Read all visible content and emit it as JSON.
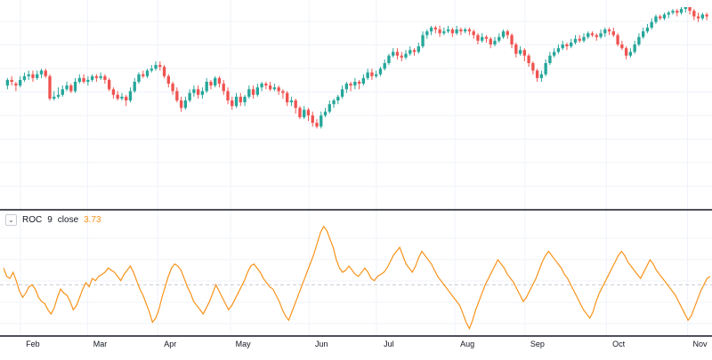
{
  "indicator": {
    "name": "ROC",
    "length": "9",
    "source": "close",
    "value": "3.73",
    "toggle_icon": "chevron-down-icon"
  },
  "colors": {
    "up": "#26a69a",
    "down": "#ef5350",
    "roc_line": "#f7931a",
    "grid": "#f0f3fa",
    "separator": "#131722",
    "zero_line": "#c9ccd4"
  },
  "chart_data": [
    {
      "type": "candlestick",
      "title": "",
      "x_tick_labels": [
        "Feb",
        "Mar",
        "Apr",
        "May",
        "Jun",
        "Jul",
        "Aug",
        "Sep",
        "Oct",
        "Nov"
      ],
      "x_range": [
        0,
        254
      ],
      "x_ticks": [
        6,
        30,
        55,
        81,
        109,
        133,
        161,
        186,
        215,
        244
      ],
      "ylim": [
        0,
        100
      ],
      "grid": true,
      "candles": [
        [
          0,
          58,
          61,
          62,
          56
        ],
        [
          1,
          61,
          60,
          63,
          58
        ],
        [
          2,
          59,
          58,
          60,
          55
        ],
        [
          3,
          58,
          61,
          63,
          57
        ],
        [
          4,
          61,
          63,
          65,
          60
        ],
        [
          5,
          63,
          64,
          66,
          61
        ],
        [
          6,
          64,
          62,
          66,
          60
        ],
        [
          7,
          62,
          64,
          66,
          61
        ],
        [
          8,
          64,
          66,
          67,
          62
        ],
        [
          9,
          66,
          63,
          67,
          62
        ],
        [
          10,
          63,
          51,
          64,
          50
        ],
        [
          11,
          51,
          52,
          55,
          50
        ],
        [
          12,
          52,
          53,
          57,
          51
        ],
        [
          13,
          53,
          56,
          58,
          52
        ],
        [
          14,
          56,
          58,
          60,
          55
        ],
        [
          15,
          58,
          55,
          59,
          54
        ],
        [
          16,
          55,
          60,
          62,
          54
        ],
        [
          17,
          60,
          62,
          64,
          59
        ],
        [
          18,
          62,
          60,
          64,
          59
        ],
        [
          19,
          60,
          61,
          63,
          58
        ],
        [
          20,
          61,
          63,
          64,
          60
        ],
        [
          21,
          63,
          62,
          64,
          60
        ],
        [
          22,
          62,
          63,
          65,
          61
        ],
        [
          23,
          63,
          61,
          64,
          59
        ],
        [
          24,
          61,
          56,
          62,
          55
        ],
        [
          25,
          56,
          53,
          57,
          51
        ],
        [
          26,
          53,
          51,
          55,
          50
        ],
        [
          27,
          51,
          52,
          54,
          50
        ],
        [
          28,
          52,
          50,
          53,
          47
        ],
        [
          29,
          50,
          55,
          57,
          49
        ],
        [
          30,
          55,
          60,
          62,
          54
        ],
        [
          31,
          60,
          64,
          65,
          59
        ],
        [
          32,
          64,
          63,
          66,
          62
        ],
        [
          33,
          63,
          66,
          67,
          62
        ],
        [
          34,
          66,
          67,
          69,
          65
        ],
        [
          35,
          67,
          69,
          71,
          66
        ],
        [
          36,
          69,
          68,
          71,
          66
        ],
        [
          37,
          68,
          63,
          69,
          62
        ],
        [
          38,
          63,
          59,
          64,
          57
        ],
        [
          39,
          59,
          55,
          60,
          53
        ],
        [
          40,
          55,
          50,
          57,
          49
        ],
        [
          41,
          50,
          46,
          52,
          44
        ],
        [
          42,
          46,
          50,
          52,
          45
        ],
        [
          43,
          50,
          54,
          56,
          49
        ],
        [
          44,
          54,
          56,
          58,
          52
        ],
        [
          45,
          56,
          53,
          58,
          51
        ],
        [
          46,
          53,
          55,
          57,
          51
        ],
        [
          47,
          55,
          60,
          62,
          54
        ],
        [
          48,
          60,
          58,
          61,
          56
        ],
        [
          49,
          58,
          62,
          63,
          57
        ],
        [
          50,
          62,
          59,
          63,
          57
        ],
        [
          51,
          59,
          55,
          61,
          53
        ],
        [
          52,
          55,
          50,
          57,
          48
        ],
        [
          53,
          50,
          47,
          52,
          45
        ],
        [
          54,
          47,
          52,
          54,
          46
        ],
        [
          55,
          52,
          49,
          54,
          47
        ],
        [
          56,
          49,
          52,
          53,
          47
        ],
        [
          57,
          52,
          56,
          58,
          51
        ],
        [
          58,
          56,
          53,
          58,
          51
        ],
        [
          59,
          53,
          57,
          59,
          52
        ],
        [
          60,
          57,
          59,
          60,
          55
        ],
        [
          61,
          59,
          58,
          60,
          56
        ],
        [
          62,
          58,
          56,
          60,
          55
        ],
        [
          63,
          56,
          57,
          59,
          55
        ],
        [
          64,
          57,
          55,
          58,
          53
        ],
        [
          65,
          55,
          54,
          56,
          51
        ],
        [
          66,
          54,
          49,
          55,
          47
        ],
        [
          67,
          49,
          50,
          52,
          47
        ],
        [
          68,
          50,
          46,
          51,
          43
        ],
        [
          69,
          46,
          41,
          47,
          40
        ],
        [
          70,
          41,
          45,
          47,
          40
        ],
        [
          71,
          45,
          42,
          46,
          39
        ],
        [
          72,
          42,
          38,
          44,
          36
        ],
        [
          73,
          38,
          36,
          40,
          35
        ],
        [
          74,
          36,
          42,
          44,
          35
        ],
        [
          75,
          42,
          44,
          46,
          41
        ],
        [
          76,
          44,
          48,
          50,
          43
        ],
        [
          77,
          48,
          50,
          51,
          46
        ],
        [
          78,
          50,
          52,
          53,
          48
        ],
        [
          79,
          52,
          56,
          58,
          51
        ],
        [
          80,
          56,
          59,
          60,
          54
        ],
        [
          81,
          59,
          58,
          60,
          55
        ],
        [
          82,
          58,
          60,
          62,
          56
        ],
        [
          83,
          60,
          59,
          61,
          56
        ],
        [
          84,
          59,
          62,
          64,
          58
        ],
        [
          85,
          62,
          65,
          67,
          61
        ],
        [
          86,
          65,
          63,
          67,
          61
        ],
        [
          87,
          63,
          64,
          66,
          62
        ],
        [
          88,
          64,
          67,
          68,
          63
        ],
        [
          89,
          67,
          70,
          72,
          66
        ],
        [
          90,
          70,
          74,
          75,
          69
        ],
        [
          91,
          74,
          76,
          78,
          73
        ],
        [
          92,
          76,
          74,
          78,
          72
        ],
        [
          93,
          74,
          73,
          76,
          71
        ],
        [
          94,
          73,
          75,
          77,
          72
        ],
        [
          95,
          75,
          77,
          79,
          74
        ],
        [
          96,
          77,
          76,
          78,
          74
        ],
        [
          97,
          76,
          79,
          81,
          75
        ],
        [
          98,
          79,
          85,
          87,
          78
        ],
        [
          99,
          85,
          87,
          88,
          83
        ],
        [
          100,
          87,
          89,
          90,
          85
        ],
        [
          101,
          89,
          88,
          90,
          86
        ],
        [
          102,
          88,
          86,
          90,
          84
        ],
        [
          103,
          86,
          87,
          89,
          85
        ],
        [
          104,
          87,
          88,
          90,
          86
        ],
        [
          105,
          88,
          86,
          89,
          84
        ],
        [
          106,
          86,
          88,
          90,
          85
        ],
        [
          107,
          88,
          87,
          89,
          85
        ],
        [
          108,
          87,
          88,
          89,
          86
        ],
        [
          109,
          88,
          87,
          89,
          85
        ],
        [
          110,
          87,
          85,
          88,
          83
        ],
        [
          111,
          85,
          82,
          86,
          80
        ],
        [
          112,
          82,
          84,
          86,
          81
        ],
        [
          113,
          84,
          83,
          85,
          81
        ],
        [
          114,
          83,
          80,
          84,
          78
        ],
        [
          115,
          80,
          82,
          84,
          79
        ],
        [
          116,
          82,
          84,
          86,
          81
        ],
        [
          117,
          84,
          87,
          88,
          83
        ],
        [
          118,
          87,
          85,
          88,
          83
        ],
        [
          119,
          85,
          80,
          86,
          78
        ],
        [
          120,
          80,
          75,
          81,
          73
        ],
        [
          121,
          75,
          77,
          79,
          74
        ],
        [
          122,
          77,
          74,
          78,
          71
        ],
        [
          123,
          74,
          70,
          75,
          68
        ],
        [
          124,
          70,
          66,
          71,
          64
        ],
        [
          125,
          66,
          62,
          67,
          60
        ],
        [
          126,
          62,
          64,
          66,
          60
        ],
        [
          127,
          64,
          70,
          72,
          63
        ],
        [
          128,
          70,
          74,
          76,
          69
        ],
        [
          129,
          74,
          76,
          78,
          73
        ],
        [
          130,
          76,
          78,
          80,
          75
        ],
        [
          131,
          78,
          80,
          82,
          77
        ],
        [
          132,
          80,
          79,
          81,
          77
        ],
        [
          133,
          79,
          81,
          83,
          78
        ],
        [
          134,
          81,
          83,
          85,
          80
        ],
        [
          135,
          83,
          82,
          85,
          81
        ],
        [
          136,
          82,
          84,
          86,
          81
        ],
        [
          137,
          84,
          86,
          87,
          83
        ],
        [
          138,
          86,
          85,
          87,
          84
        ],
        [
          139,
          85,
          84,
          86,
          82
        ],
        [
          140,
          84,
          86,
          88,
          83
        ],
        [
          141,
          86,
          88,
          89,
          84
        ],
        [
          142,
          88,
          87,
          89,
          85
        ],
        [
          143,
          87,
          85,
          89,
          84
        ],
        [
          144,
          85,
          80,
          86,
          79
        ],
        [
          145,
          80,
          78,
          82,
          77
        ],
        [
          146,
          78,
          74,
          79,
          72
        ],
        [
          147,
          74,
          76,
          78,
          73
        ],
        [
          148,
          76,
          80,
          82,
          75
        ],
        [
          149,
          80,
          84,
          86,
          79
        ],
        [
          150,
          84,
          87,
          89,
          83
        ],
        [
          151,
          87,
          89,
          91,
          86
        ],
        [
          152,
          89,
          92,
          94,
          88
        ],
        [
          153,
          92,
          95,
          96,
          91
        ],
        [
          154,
          95,
          94,
          96,
          93
        ],
        [
          155,
          94,
          96,
          97,
          93
        ],
        [
          156,
          96,
          97,
          98,
          94
        ],
        [
          157,
          97,
          98,
          99,
          96
        ],
        [
          158,
          98,
          97,
          99,
          95
        ],
        [
          159,
          97,
          99,
          100,
          96
        ],
        [
          160,
          99,
          100,
          100,
          97
        ],
        [
          161,
          100,
          98,
          100,
          96
        ],
        [
          162,
          98,
          95,
          99,
          93
        ],
        [
          163,
          95,
          94,
          97,
          92
        ],
        [
          164,
          94,
          96,
          97,
          93
        ],
        [
          165,
          96,
          95,
          97,
          93
        ]
      ],
      "close_series_note": "values in relative price units (0-100 scale)"
    },
    {
      "type": "line",
      "title": "ROC 9 close",
      "series": [
        {
          "name": "ROC",
          "values": [
            8,
            4,
            3,
            6,
            2,
            -3,
            -6,
            -4,
            -1,
            0,
            -2,
            -6,
            -8,
            -9,
            -12,
            -14,
            -11,
            -6,
            -2,
            -4,
            -5,
            -8,
            -12,
            -10,
            -6,
            -2,
            1,
            -1,
            3,
            2,
            4,
            5,
            6,
            8,
            7,
            6,
            4,
            2,
            5,
            7,
            9,
            6,
            2,
            -2,
            -5,
            -9,
            -13,
            -18,
            -16,
            -12,
            -6,
            -1,
            4,
            8,
            10,
            9,
            7,
            3,
            -1,
            -4,
            -8,
            -10,
            -12,
            -14,
            -11,
            -8,
            -4,
            0,
            -3,
            -6,
            -9,
            -12,
            -10,
            -7,
            -4,
            -1,
            2,
            6,
            9,
            10,
            8,
            6,
            3,
            1,
            -1,
            -2,
            -5,
            -8,
            -12,
            -15,
            -17,
            -13,
            -9,
            -5,
            -1,
            3,
            7,
            11,
            15,
            20,
            25,
            28,
            26,
            22,
            18,
            12,
            8,
            6,
            7,
            9,
            7,
            5,
            4,
            6,
            8,
            6,
            3,
            2,
            4,
            5,
            6,
            8,
            11,
            14,
            16,
            18,
            14,
            10,
            8,
            6,
            9,
            13,
            16,
            14,
            12,
            10,
            7,
            4,
            2,
            0,
            -2,
            -4,
            -6,
            -8,
            -10,
            -14,
            -18,
            -21,
            -17,
            -12,
            -8,
            -4,
            0,
            3,
            6,
            9,
            12,
            10,
            8,
            5,
            3,
            1,
            -2,
            -5,
            -8,
            -6,
            -3,
            0,
            3,
            7,
            11,
            14,
            16,
            14,
            12,
            10,
            8,
            5,
            3,
            0,
            -3,
            -6,
            -9,
            -12,
            -14,
            -16,
            -13,
            -8,
            -4,
            -1,
            2,
            5,
            8,
            11,
            14,
            16,
            14,
            11,
            9,
            7,
            5,
            3,
            6,
            9,
            12,
            10,
            7,
            5,
            3,
            1,
            -1,
            -3,
            -5,
            -8,
            -11,
            -14,
            -17,
            -15,
            -11,
            -7,
            -3,
            0,
            3,
            4
          ]
        }
      ],
      "last_value": 3.73,
      "zero_line": true,
      "ylim": [
        -22,
        30
      ]
    }
  ]
}
